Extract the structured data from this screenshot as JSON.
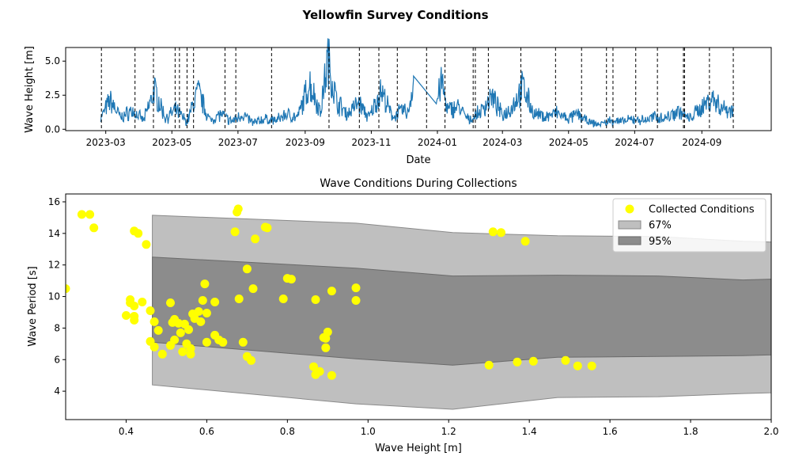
{
  "figure": {
    "title": "Yellowfin Survey Conditions"
  },
  "colors": {
    "wave_line": "#1f77b4",
    "collected_points": "#ffff00",
    "band_67": "#bfbfbf",
    "band_95": "#8c8c8c",
    "vlines": "#000000"
  },
  "chart_data": [
    {
      "type": "line",
      "title": "",
      "xlabel": "Date",
      "ylabel": "Wave Height [m]",
      "xlim": [
        "2023-01-23",
        "2024-11-04"
      ],
      "ylim": [
        -0.1,
        6.0
      ],
      "x_ticks": [
        "2023-03",
        "2023-05",
        "2023-07",
        "2023-09",
        "2023-11",
        "2024-01",
        "2024-03",
        "2024-05",
        "2024-07",
        "2024-09"
      ],
      "y_ticks": [
        "0.0",
        "2.5",
        "5.0"
      ],
      "grid": false,
      "series": [
        {
          "style": "solid line",
          "x": [
            "2023-02-24",
            "2023-03-05",
            "2023-03-15",
            "2023-03-25",
            "2023-04-05",
            "2023-04-15",
            "2023-04-25",
            "2023-05-05",
            "2023-05-15",
            "2023-05-25",
            "2023-06-05",
            "2023-06-15",
            "2023-06-25",
            "2023-07-05",
            "2023-07-15",
            "2023-07-25",
            "2023-08-05",
            "2023-08-15",
            "2023-08-25",
            "2023-09-05",
            "2023-09-15",
            "2023-09-22",
            "2023-09-30",
            "2023-10-10",
            "2023-10-20",
            "2023-10-30",
            "2023-11-10",
            "2023-11-20",
            "2023-11-30",
            "2023-12-05",
            "2023-12-10",
            "2023-12-31",
            "2024-01-05",
            "2024-01-10",
            "2024-01-20",
            "2024-01-30",
            "2024-02-10",
            "2024-02-20",
            "2024-03-01",
            "2024-03-10",
            "2024-03-20",
            "2024-03-30",
            "2024-04-10",
            "2024-04-20",
            "2024-04-30",
            "2024-05-10",
            "2024-05-20",
            "2024-05-30",
            "2024-06-10",
            "2024-06-20",
            "2024-06-30",
            "2024-07-10",
            "2024-07-20",
            "2024-07-30",
            "2024-08-10",
            "2024-08-20",
            "2024-08-30",
            "2024-09-10",
            "2024-09-20",
            "2024-09-30"
          ],
          "y": [
            0.8,
            2.3,
            0.9,
            1.5,
            0.7,
            3.1,
            0.9,
            1.5,
            0.6,
            3.0,
            0.7,
            1.2,
            0.6,
            1.2,
            0.5,
            0.8,
            0.7,
            1.2,
            0.9,
            3.7,
            1.4,
            5.6,
            2.2,
            1.2,
            2.1,
            0.9,
            3.1,
            1.0,
            1.5,
            1.3,
            3.9,
            2.1,
            3.8,
            1.5,
            1.8,
            0.7,
            1.4,
            2.6,
            1.1,
            1.8,
            3.4,
            1.2,
            1.0,
            1.3,
            0.8,
            1.2,
            0.5,
            0.4,
            0.7,
            0.6,
            0.8,
            0.7,
            1.0,
            0.9,
            1.5,
            0.8,
            1.6,
            2.5,
            1.7,
            1.5
          ]
        }
      ],
      "vlines": [
        "2023-02-25",
        "2023-03-28",
        "2023-04-14",
        "2023-05-04",
        "2023-05-08",
        "2023-05-15",
        "2023-05-21",
        "2023-06-19",
        "2023-06-29",
        "2023-08-01",
        "2023-09-23",
        "2023-10-21",
        "2023-11-08",
        "2023-11-25",
        "2023-12-22",
        "2024-01-08",
        "2024-02-03",
        "2024-02-05",
        "2024-02-17",
        "2024-03-18",
        "2024-04-19",
        "2024-05-13",
        "2024-06-05",
        "2024-06-11",
        "2024-07-02",
        "2024-07-22",
        "2024-08-15",
        "2024-08-16",
        "2024-09-08",
        "2024-09-30"
      ]
    },
    {
      "type": "scatter",
      "title": "Wave Conditions During Collections",
      "xlabel": "Wave Height [m]",
      "ylabel": "Wave Period [s]",
      "xlim": [
        0.25,
        2.0
      ],
      "ylim": [
        2.2,
        16.5
      ],
      "x_ticks": [
        "0.4",
        "0.6",
        "0.8",
        "1.0",
        "1.2",
        "1.4",
        "1.6",
        "1.8",
        "2.0"
      ],
      "y_ticks": [
        "4",
        "6",
        "8",
        "10",
        "12",
        "14",
        "16"
      ],
      "grid": false,
      "legend": {
        "position": "top-right",
        "entries": [
          "Collected Conditions",
          "67%",
          "95%"
        ]
      },
      "bands": [
        {
          "name": "95%",
          "x": [
            0.465,
            0.97,
            1.21,
            1.47,
            1.72,
            1.93,
            2.0
          ],
          "upper": [
            15.15,
            14.65,
            14.05,
            13.85,
            13.8,
            13.5,
            13.45
          ],
          "lower": [
            4.4,
            3.2,
            2.85,
            3.6,
            3.65,
            3.85,
            3.9
          ]
        },
        {
          "name": "67%",
          "x": [
            0.465,
            0.97,
            1.21,
            1.47,
            1.72,
            1.93,
            2.0
          ],
          "upper": [
            12.5,
            11.8,
            11.3,
            11.35,
            11.3,
            11.05,
            11.1
          ],
          "lower": [
            7.1,
            6.05,
            5.65,
            6.15,
            6.2,
            6.25,
            6.3
          ]
        }
      ],
      "series": [
        {
          "name": "Collected Conditions",
          "points": [
            [
              0.25,
              10.5
            ],
            [
              0.29,
              15.2
            ],
            [
              0.31,
              15.2
            ],
            [
              0.32,
              14.35
            ],
            [
              0.4,
              8.8
            ],
            [
              0.41,
              9.8
            ],
            [
              0.41,
              9.6
            ],
            [
              0.42,
              14.15
            ],
            [
              0.42,
              8.5
            ],
            [
              0.42,
              8.75
            ],
            [
              0.42,
              9.4
            ],
            [
              0.43,
              14.0
            ],
            [
              0.44,
              9.65
            ],
            [
              0.45,
              13.3
            ],
            [
              0.46,
              9.1
            ],
            [
              0.46,
              7.15
            ],
            [
              0.47,
              8.4
            ],
            [
              0.47,
              6.8
            ],
            [
              0.48,
              7.85
            ],
            [
              0.49,
              6.35
            ],
            [
              0.51,
              6.9
            ],
            [
              0.51,
              9.6
            ],
            [
              0.515,
              8.35
            ],
            [
              0.52,
              7.25
            ],
            [
              0.52,
              8.55
            ],
            [
              0.53,
              8.3
            ],
            [
              0.535,
              7.7
            ],
            [
              0.54,
              6.5
            ],
            [
              0.545,
              8.25
            ],
            [
              0.55,
              7.0
            ],
            [
              0.555,
              7.9
            ],
            [
              0.56,
              6.7
            ],
            [
              0.56,
              6.35
            ],
            [
              0.565,
              8.9
            ],
            [
              0.57,
              8.6
            ],
            [
              0.58,
              9.05
            ],
            [
              0.585,
              8.4
            ],
            [
              0.59,
              9.75
            ],
            [
              0.595,
              10.8
            ],
            [
              0.6,
              8.95
            ],
            [
              0.6,
              7.1
            ],
            [
              0.62,
              9.65
            ],
            [
              0.62,
              7.55
            ],
            [
              0.63,
              7.25
            ],
            [
              0.64,
              7.1
            ],
            [
              0.67,
              14.1
            ],
            [
              0.675,
              15.35
            ],
            [
              0.678,
              15.55
            ],
            [
              0.68,
              9.85
            ],
            [
              0.69,
              7.1
            ],
            [
              0.7,
              11.75
            ],
            [
              0.7,
              6.2
            ],
            [
              0.71,
              5.95
            ],
            [
              0.715,
              10.5
            ],
            [
              0.72,
              13.65
            ],
            [
              0.745,
              14.4
            ],
            [
              0.75,
              14.35
            ],
            [
              0.79,
              9.85
            ],
            [
              0.8,
              11.15
            ],
            [
              0.81,
              11.1
            ],
            [
              0.865,
              5.55
            ],
            [
              0.87,
              5.05
            ],
            [
              0.87,
              9.8
            ],
            [
              0.88,
              5.25
            ],
            [
              0.89,
              7.4
            ],
            [
              0.895,
              6.75
            ],
            [
              0.895,
              7.35
            ],
            [
              0.9,
              7.75
            ],
            [
              0.91,
              5.0
            ],
            [
              0.91,
              10.35
            ],
            [
              0.97,
              9.75
            ],
            [
              0.97,
              10.55
            ],
            [
              1.3,
              5.65
            ],
            [
              1.31,
              14.1
            ],
            [
              1.33,
              14.05
            ],
            [
              1.37,
              5.85
            ],
            [
              1.39,
              13.5
            ],
            [
              1.41,
              5.9
            ],
            [
              1.49,
              5.95
            ],
            [
              1.52,
              5.6
            ],
            [
              1.555,
              5.6
            ]
          ]
        }
      ]
    }
  ]
}
